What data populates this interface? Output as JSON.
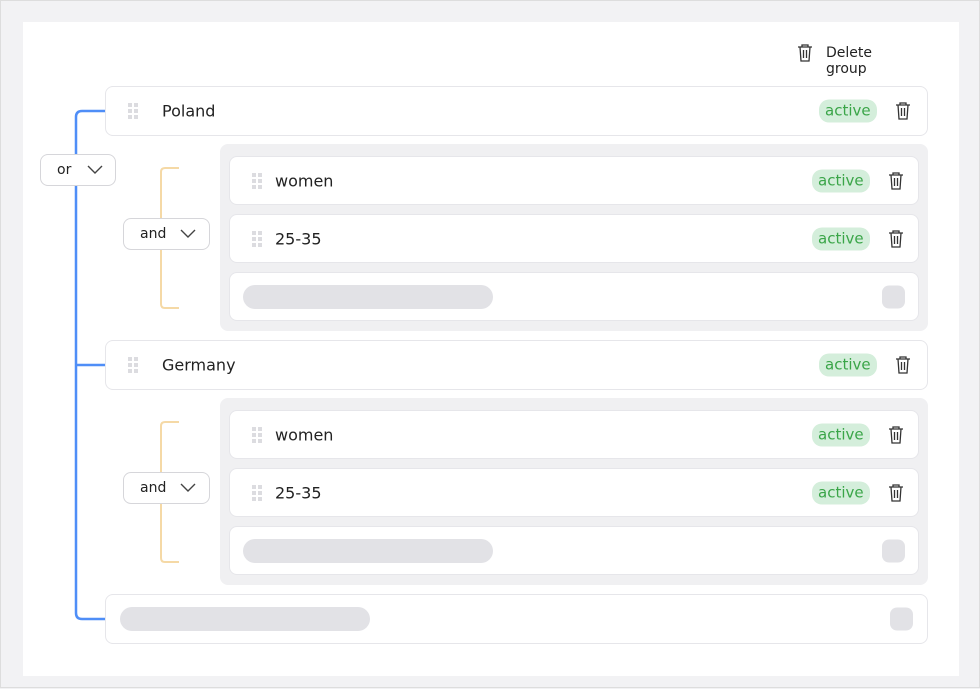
{
  "header": {
    "delete_group_label": "Delete group"
  },
  "root_operator": {
    "value": "or"
  },
  "colors": {
    "or_line": "#4f8ef7",
    "and_line": "#f5d9a6",
    "badge_text": "#3aa548",
    "badge_bg": "#d4eedb"
  },
  "groups": [
    {
      "label": "Poland",
      "status": "active",
      "operator": "and",
      "conditions": [
        {
          "label": "women",
          "status": "active"
        },
        {
          "label": "25-35",
          "status": "active"
        }
      ]
    },
    {
      "label": "Germany",
      "status": "active",
      "operator": "and",
      "conditions": [
        {
          "label": "women",
          "status": "active"
        },
        {
          "label": "25-35",
          "status": "active"
        }
      ]
    }
  ]
}
